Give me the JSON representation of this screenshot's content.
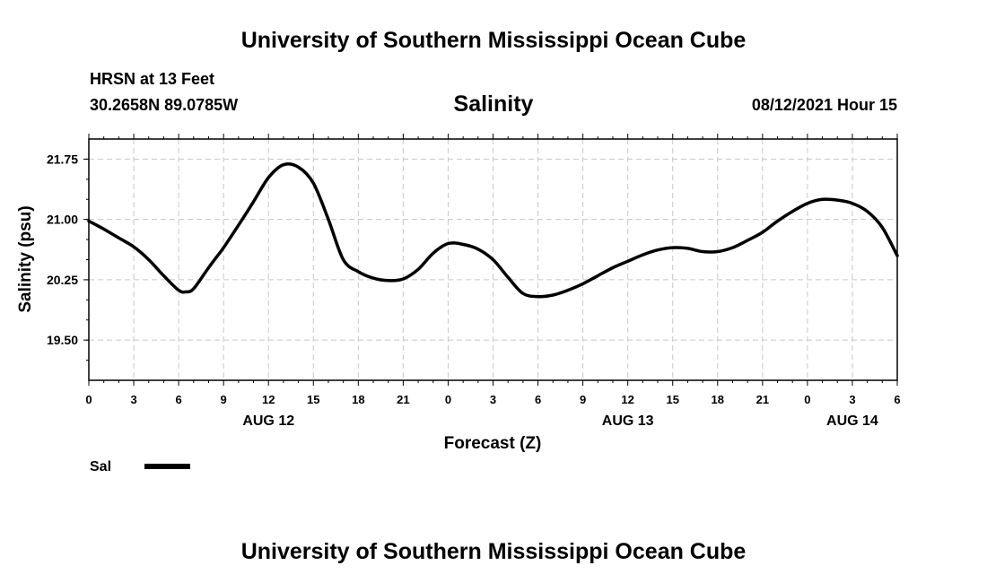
{
  "header": {
    "title": "University of Southern Mississippi Ocean Cube",
    "station": "HRSN at 13 Feet",
    "coords": "30.2658N  89.0785W",
    "variable": "Salinity",
    "datetime": "08/12/2021 Hour 15"
  },
  "footer": {
    "title": "University of Southern Mississippi Ocean Cube"
  },
  "chart_data": {
    "type": "line",
    "title": "Salinity",
    "xlabel": "Forecast (Z)",
    "ylabel": "Salinity (psu)",
    "x_unit": "forecast hours from 00Z Aug 12",
    "xlim": [
      0,
      54
    ],
    "ylim": [
      19.0,
      22.0
    ],
    "grid": true,
    "x_ticks": [
      {
        "x": 0,
        "label": "0"
      },
      {
        "x": 3,
        "label": "3"
      },
      {
        "x": 6,
        "label": "6"
      },
      {
        "x": 9,
        "label": "9"
      },
      {
        "x": 12,
        "label": "12"
      },
      {
        "x": 15,
        "label": "15"
      },
      {
        "x": 18,
        "label": "18"
      },
      {
        "x": 21,
        "label": "21"
      },
      {
        "x": 24,
        "label": "0"
      },
      {
        "x": 27,
        "label": "3"
      },
      {
        "x": 30,
        "label": "6"
      },
      {
        "x": 33,
        "label": "9"
      },
      {
        "x": 36,
        "label": "12"
      },
      {
        "x": 39,
        "label": "15"
      },
      {
        "x": 42,
        "label": "18"
      },
      {
        "x": 45,
        "label": "21"
      },
      {
        "x": 48,
        "label": "0"
      },
      {
        "x": 51,
        "label": "3"
      },
      {
        "x": 54,
        "label": "6"
      }
    ],
    "date_labels": [
      {
        "x": 12,
        "label": "AUG 12"
      },
      {
        "x": 36,
        "label": "AUG 13"
      },
      {
        "x": 51,
        "label": "AUG 14"
      }
    ],
    "y_ticks": [
      {
        "y": 19.5,
        "label": "19.50"
      },
      {
        "y": 20.25,
        "label": "20.25"
      },
      {
        "y": 21.0,
        "label": "21.00"
      },
      {
        "y": 21.75,
        "label": "21.75"
      }
    ],
    "series": [
      {
        "name": "Sal",
        "color": "#000000",
        "x": [
          0,
          1,
          2,
          3,
          4,
          5,
          6,
          6.5,
          7,
          8,
          9,
          10,
          11,
          12,
          13,
          14,
          15,
          16,
          17,
          18,
          19,
          20,
          21,
          22,
          23,
          24,
          25,
          26,
          27,
          28,
          29,
          30,
          31,
          32,
          33,
          34,
          35,
          36,
          37,
          38,
          39,
          40,
          41,
          42,
          43,
          44,
          45,
          46,
          47,
          48,
          49,
          50,
          51,
          52,
          53,
          54
        ],
        "values": [
          20.98,
          20.88,
          20.77,
          20.66,
          20.5,
          20.3,
          20.12,
          20.1,
          20.14,
          20.4,
          20.65,
          20.93,
          21.22,
          21.52,
          21.68,
          21.65,
          21.45,
          21.0,
          20.5,
          20.35,
          20.27,
          20.24,
          20.26,
          20.38,
          20.58,
          20.7,
          20.69,
          20.63,
          20.5,
          20.28,
          20.08,
          20.04,
          20.06,
          20.12,
          20.2,
          20.3,
          20.4,
          20.48,
          20.56,
          20.62,
          20.65,
          20.64,
          20.6,
          20.6,
          20.65,
          20.74,
          20.84,
          20.98,
          21.1,
          21.2,
          21.25,
          21.24,
          21.2,
          21.1,
          20.9,
          20.55
        ]
      }
    ],
    "legend": {
      "position": "bottom-left",
      "label": "Sal"
    }
  }
}
